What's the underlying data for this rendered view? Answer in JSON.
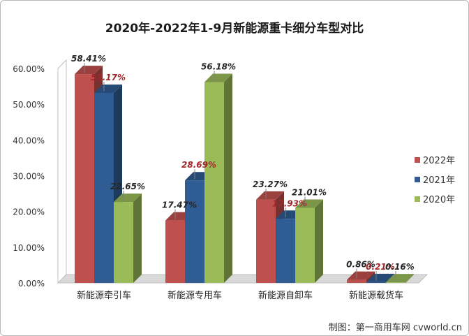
{
  "chart_data": {
    "type": "bar",
    "title": "2020年-2022年1-9月新能源重卡细分车型对比",
    "credit": "制图：第一商用车网 cvworld.cn",
    "categories": [
      "新能源牵引车",
      "新能源专用车",
      "新能源自卸车",
      "新能源载货车"
    ],
    "series": [
      {
        "name": "2022年",
        "color": "#c0504d",
        "label_color": "#262626",
        "values": [
          58.41,
          17.47,
          23.27,
          0.86
        ],
        "labels": [
          "58.41%",
          "17.47%",
          "23.27%",
          "0.86%"
        ]
      },
      {
        "name": "2021年",
        "color": "#2f5d93",
        "label_color": "#a0282b",
        "values": [
          53.17,
          28.69,
          17.93,
          0.21
        ],
        "labels": [
          "53.17%",
          "28.69%",
          "17.93%",
          "0.21%"
        ]
      },
      {
        "name": "2020年",
        "color": "#9bbb59",
        "label_color": "#262626",
        "values": [
          22.65,
          56.18,
          21.01,
          0.16
        ],
        "labels": [
          "22.65%",
          "56.18%",
          "21.01%",
          "0.16%"
        ]
      }
    ],
    "yticks": [
      "0.00%",
      "10.00%",
      "20.00%",
      "30.00%",
      "40.00%",
      "50.00%",
      "60.00%"
    ],
    "ylim": [
      0,
      60
    ],
    "legend_position": "right",
    "grid": false,
    "style": "3d"
  }
}
